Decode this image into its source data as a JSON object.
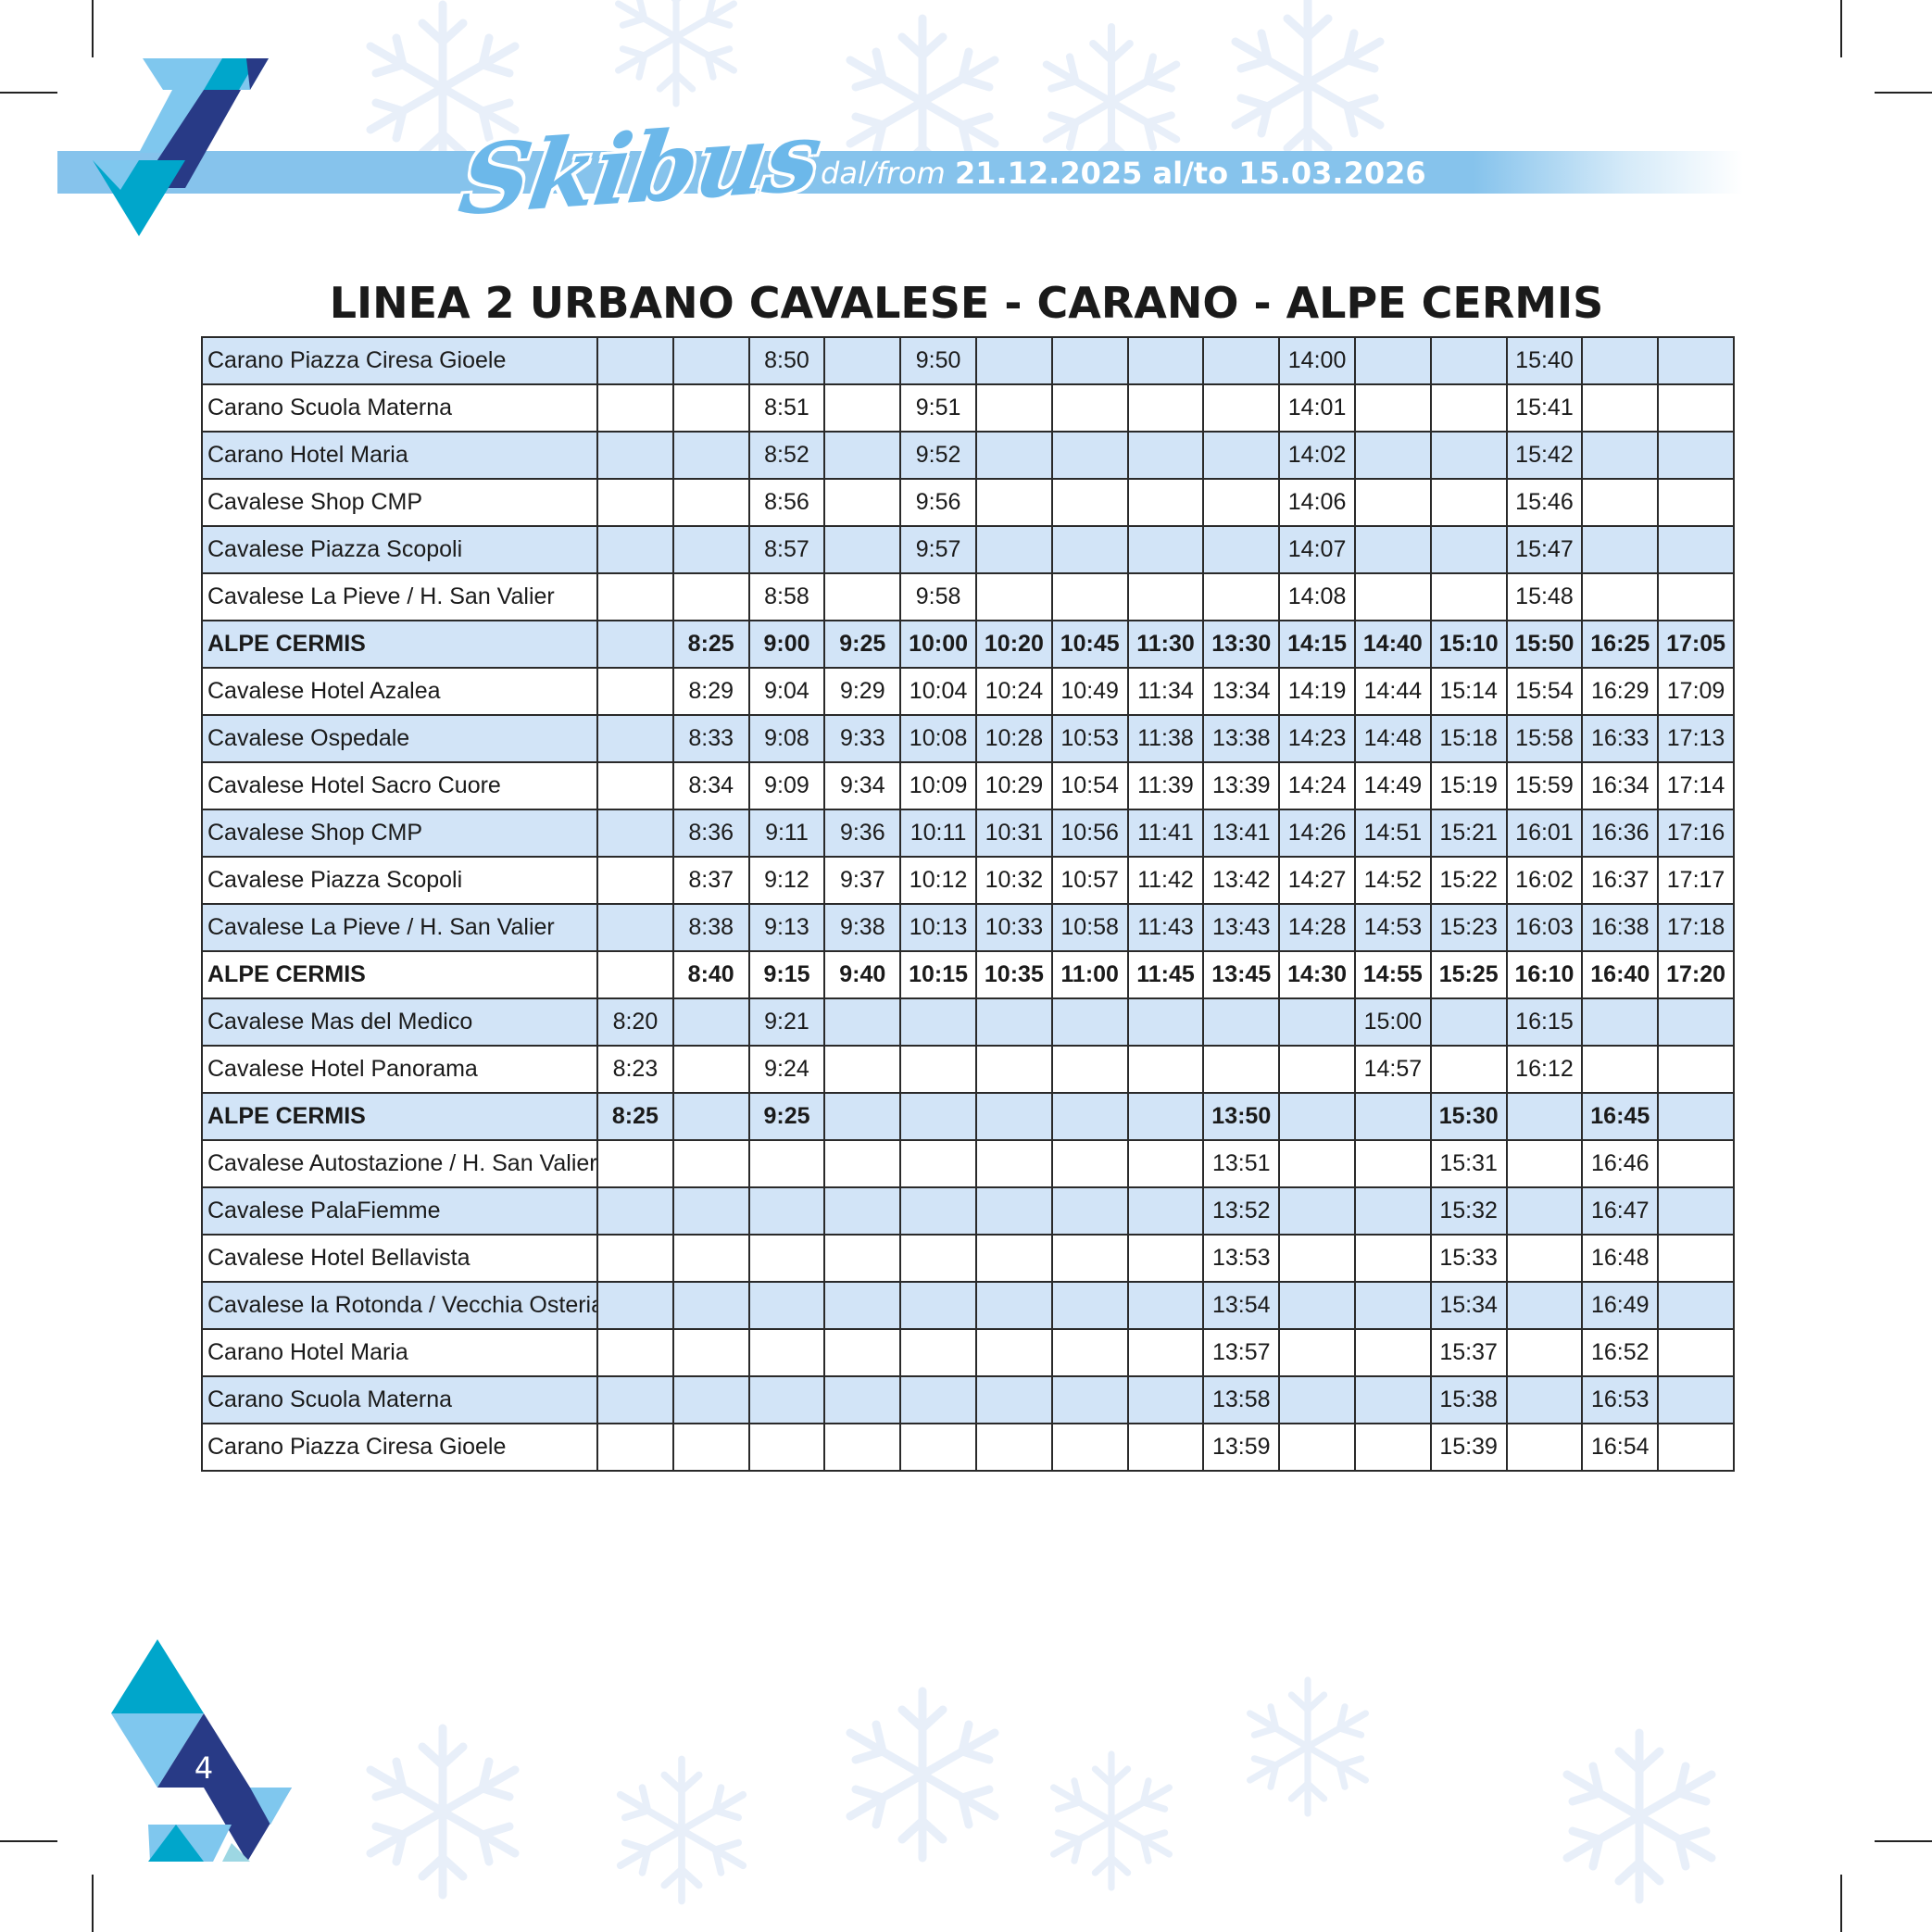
{
  "header": {
    "logo_text": "Skibus",
    "date_label": "dal/from",
    "date_range": "21.12.2025 al/to 15.03.2026"
  },
  "title": "LINEA 2 URBANO CAVALESE - CARANO - ALPE CERMIS",
  "page_number": "4",
  "colors": {
    "banner": "#86c3ec",
    "logo": "#6cb8ea",
    "row_shade": "#d2e4f7",
    "triangle_dark": "#283a86",
    "triangle_cyan": "#00a6cb",
    "triangle_light": "#7fc7ee"
  },
  "timetable": {
    "rows": [
      {
        "stop": "Carano Piazza Ciresa Gioele",
        "times": [
          "",
          "",
          "8:50",
          "",
          "9:50",
          "",
          "",
          "",
          "",
          "14:00",
          "",
          "",
          "15:40",
          "",
          ""
        ]
      },
      {
        "stop": "Carano Scuola Materna",
        "times": [
          "",
          "",
          "8:51",
          "",
          "9:51",
          "",
          "",
          "",
          "",
          "14:01",
          "",
          "",
          "15:41",
          "",
          ""
        ]
      },
      {
        "stop": "Carano Hotel Maria",
        "times": [
          "",
          "",
          "8:52",
          "",
          "9:52",
          "",
          "",
          "",
          "",
          "14:02",
          "",
          "",
          "15:42",
          "",
          ""
        ]
      },
      {
        "stop": "Cavalese Shop CMP",
        "times": [
          "",
          "",
          "8:56",
          "",
          "9:56",
          "",
          "",
          "",
          "",
          "14:06",
          "",
          "",
          "15:46",
          "",
          ""
        ]
      },
      {
        "stop": "Cavalese Piazza Scopoli",
        "times": [
          "",
          "",
          "8:57",
          "",
          "9:57",
          "",
          "",
          "",
          "",
          "14:07",
          "",
          "",
          "15:47",
          "",
          ""
        ]
      },
      {
        "stop": "Cavalese La Pieve / H. San Valier",
        "times": [
          "",
          "",
          "8:58",
          "",
          "9:58",
          "",
          "",
          "",
          "",
          "14:08",
          "",
          "",
          "15:48",
          "",
          ""
        ]
      },
      {
        "stop": "ALPE CERMIS",
        "bold": true,
        "times": [
          "",
          "8:25",
          "9:00",
          "9:25",
          "10:00",
          "10:20",
          "10:45",
          "11:30",
          "13:30",
          "14:15",
          "14:40",
          "15:10",
          "15:50",
          "16:25",
          "17:05"
        ]
      },
      {
        "stop": "Cavalese Hotel Azalea",
        "times": [
          "",
          "8:29",
          "9:04",
          "9:29",
          "10:04",
          "10:24",
          "10:49",
          "11:34",
          "13:34",
          "14:19",
          "14:44",
          "15:14",
          "15:54",
          "16:29",
          "17:09"
        ]
      },
      {
        "stop": "Cavalese Ospedale",
        "times": [
          "",
          "8:33",
          "9:08",
          "9:33",
          "10:08",
          "10:28",
          "10:53",
          "11:38",
          "13:38",
          "14:23",
          "14:48",
          "15:18",
          "15:58",
          "16:33",
          "17:13"
        ]
      },
      {
        "stop": "Cavalese Hotel Sacro Cuore",
        "times": [
          "",
          "8:34",
          "9:09",
          "9:34",
          "10:09",
          "10:29",
          "10:54",
          "11:39",
          "13:39",
          "14:24",
          "14:49",
          "15:19",
          "15:59",
          "16:34",
          "17:14"
        ]
      },
      {
        "stop": "Cavalese Shop CMP",
        "times": [
          "",
          "8:36",
          "9:11",
          "9:36",
          "10:11",
          "10:31",
          "10:56",
          "11:41",
          "13:41",
          "14:26",
          "14:51",
          "15:21",
          "16:01",
          "16:36",
          "17:16"
        ]
      },
      {
        "stop": "Cavalese Piazza Scopoli",
        "times": [
          "",
          "8:37",
          "9:12",
          "9:37",
          "10:12",
          "10:32",
          "10:57",
          "11:42",
          "13:42",
          "14:27",
          "14:52",
          "15:22",
          "16:02",
          "16:37",
          "17:17"
        ]
      },
      {
        "stop": "Cavalese La Pieve / H. San Valier",
        "times": [
          "",
          "8:38",
          "9:13",
          "9:38",
          "10:13",
          "10:33",
          "10:58",
          "11:43",
          "13:43",
          "14:28",
          "14:53",
          "15:23",
          "16:03",
          "16:38",
          "17:18"
        ]
      },
      {
        "stop": "ALPE CERMIS",
        "bold": true,
        "times": [
          "",
          "8:40",
          "9:15",
          "9:40",
          "10:15",
          "10:35",
          "11:00",
          "11:45",
          "13:45",
          "14:30",
          "14:55",
          "15:25",
          "16:10",
          "16:40",
          "17:20"
        ]
      },
      {
        "stop": "Cavalese Mas del Medico",
        "times": [
          "8:20",
          "",
          "9:21",
          "",
          "",
          "",
          "",
          "",
          "",
          "",
          "15:00",
          "",
          "16:15",
          "",
          ""
        ]
      },
      {
        "stop": "Cavalese Hotel Panorama",
        "times": [
          "8:23",
          "",
          "9:24",
          "",
          "",
          "",
          "",
          "",
          "",
          "",
          "14:57",
          "",
          "16:12",
          "",
          ""
        ]
      },
      {
        "stop": "ALPE CERMIS",
        "bold": true,
        "times": [
          "8:25",
          "",
          "9:25",
          "",
          "",
          "",
          "",
          "",
          "13:50",
          "",
          "",
          "15:30",
          "",
          "16:45",
          ""
        ]
      },
      {
        "stop": "Cavalese Autostazione / H. San Valier",
        "times": [
          "",
          "",
          "",
          "",
          "",
          "",
          "",
          "",
          "13:51",
          "",
          "",
          "15:31",
          "",
          "16:46",
          ""
        ]
      },
      {
        "stop": "Cavalese PalaFiemme",
        "times": [
          "",
          "",
          "",
          "",
          "",
          "",
          "",
          "",
          "13:52",
          "",
          "",
          "15:32",
          "",
          "16:47",
          ""
        ]
      },
      {
        "stop": "Cavalese Hotel Bellavista",
        "times": [
          "",
          "",
          "",
          "",
          "",
          "",
          "",
          "",
          "13:53",
          "",
          "",
          "15:33",
          "",
          "16:48",
          ""
        ]
      },
      {
        "stop": "Cavalese la Rotonda / Vecchia Osteria",
        "times": [
          "",
          "",
          "",
          "",
          "",
          "",
          "",
          "",
          "13:54",
          "",
          "",
          "15:34",
          "",
          "16:49",
          ""
        ]
      },
      {
        "stop": "Carano Hotel Maria",
        "times": [
          "",
          "",
          "",
          "",
          "",
          "",
          "",
          "",
          "13:57",
          "",
          "",
          "15:37",
          "",
          "16:52",
          ""
        ]
      },
      {
        "stop": "Carano Scuola Materna",
        "times": [
          "",
          "",
          "",
          "",
          "",
          "",
          "",
          "",
          "13:58",
          "",
          "",
          "15:38",
          "",
          "16:53",
          ""
        ]
      },
      {
        "stop": "Carano Piazza Ciresa Gioele",
        "times": [
          "",
          "",
          "",
          "",
          "",
          "",
          "",
          "",
          "13:59",
          "",
          "",
          "15:39",
          "",
          "16:54",
          ""
        ]
      }
    ]
  }
}
